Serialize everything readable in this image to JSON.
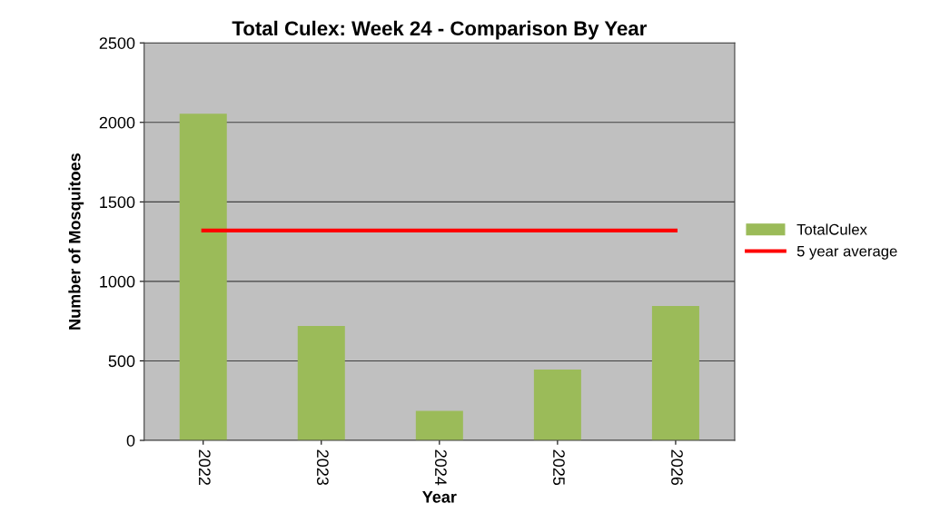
{
  "chart_data": {
    "type": "bar",
    "title": "Total Culex: Week 24 - Comparison By Year",
    "xlabel": "Year",
    "ylabel": "Number of Mosquitoes",
    "categories": [
      "2022",
      "2023",
      "2024",
      "2025",
      "2026"
    ],
    "series": [
      {
        "name": "TotalCulex",
        "color": "#9bbb59",
        "values": [
          2055,
          720,
          185,
          445,
          845
        ]
      },
      {
        "name": "5 year average",
        "type": "line",
        "color": "#ff0000",
        "values": [
          1320,
          1320,
          1320,
          1320,
          1320
        ]
      }
    ],
    "ylim": [
      0,
      2500
    ],
    "yticks": [
      0,
      500,
      1000,
      1500,
      2000,
      2500
    ],
    "grid": "y",
    "legend": "right",
    "marker": "none",
    "line_style": "solid"
  }
}
